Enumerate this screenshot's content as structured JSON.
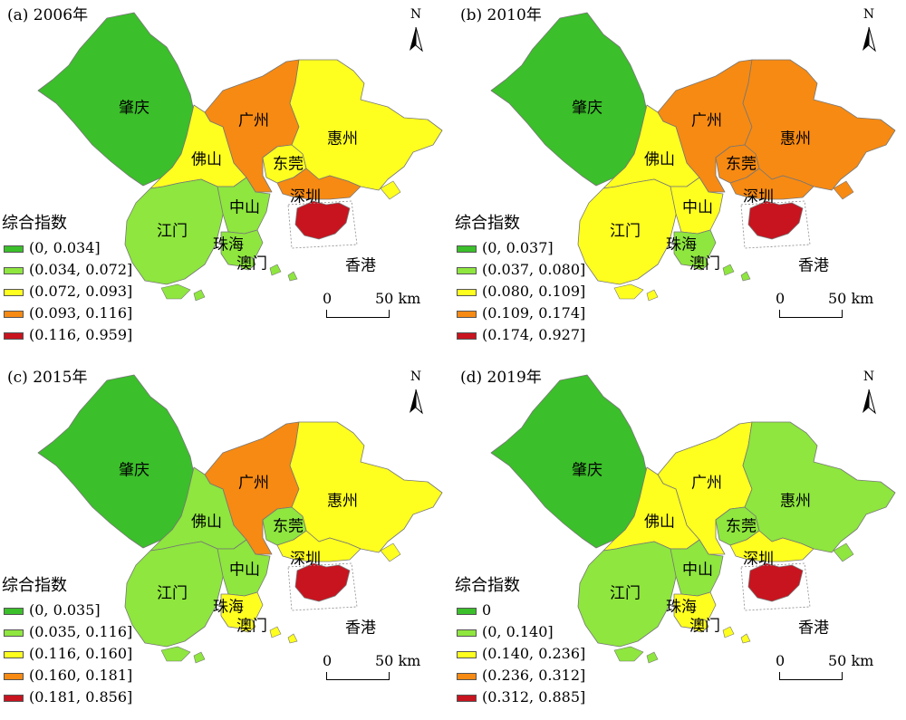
{
  "colors": {
    "c1": "#3bbf2a",
    "c2": "#8ee63e",
    "c3": "#ffff1f",
    "c4": "#f78a12",
    "c5": "#c7141f"
  },
  "legend_title": "综合指数",
  "north_letter": "N",
  "scale": {
    "zero": "0",
    "dist": "50 km"
  },
  "city_names": {
    "zhaoqing": "肇庆",
    "guangzhou": "广州",
    "huizhou": "惠州",
    "foshan": "佛山",
    "dongguan": "东莞",
    "shenzhen": "深圳",
    "jiangmen": "江门",
    "zhongshan": "中山",
    "zhuhai": "珠海",
    "macau": "澳门",
    "hongkong": "香港"
  },
  "panels": [
    {
      "title": "(a) 2006年",
      "legend": [
        "(0, 0.034]",
        "(0.034, 0.072]",
        "(0.072, 0.093]",
        "(0.093, 0.116]",
        "(0.116, 0.959]"
      ],
      "classes": {
        "zhaoqing": "c1",
        "guangzhou": "c4",
        "huizhou": "c3",
        "foshan": "c3",
        "dongguan": "c3",
        "shenzhen": "c4",
        "jiangmen": "c2",
        "zhongshan": "c2",
        "zhuhai": "c2",
        "macau": "c2",
        "hongkong": "c5"
      }
    },
    {
      "title": "(b) 2010年",
      "legend": [
        "(0, 0.037]",
        "(0.037, 0.080]",
        "(0.080, 0.109]",
        "(0.109, 0.174]",
        "(0.174, 0.927]"
      ],
      "classes": {
        "zhaoqing": "c1",
        "guangzhou": "c4",
        "huizhou": "c4",
        "foshan": "c3",
        "dongguan": "c4",
        "shenzhen": "c4",
        "jiangmen": "c3",
        "zhongshan": "c3",
        "zhuhai": "c2",
        "macau": "c2",
        "hongkong": "c5"
      }
    },
    {
      "title": "(c) 2015年",
      "legend": [
        "(0, 0.035]",
        "(0.035, 0.116]",
        "(0.116, 0.160]",
        "(0.160, 0.181]",
        "(0.181, 0.856]"
      ],
      "classes": {
        "zhaoqing": "c1",
        "guangzhou": "c4",
        "huizhou": "c3",
        "foshan": "c2",
        "dongguan": "c2",
        "shenzhen": "c3",
        "jiangmen": "c2",
        "zhongshan": "c2",
        "zhuhai": "c3",
        "macau": "c3",
        "hongkong": "c5"
      }
    },
    {
      "title": "(d) 2019年",
      "legend": [
        "0",
        "(0, 0.140]",
        "(0.140, 0.236]",
        "(0.236, 0.312]",
        "(0.312, 0.885]"
      ],
      "classes": {
        "zhaoqing": "c1",
        "guangzhou": "c3",
        "huizhou": "c2",
        "foshan": "c3",
        "dongguan": "c2",
        "shenzhen": "c3",
        "jiangmen": "c2",
        "zhongshan": "c2",
        "zhuhai": "c3",
        "macau": "c3",
        "hongkong": "c5"
      }
    }
  ]
}
